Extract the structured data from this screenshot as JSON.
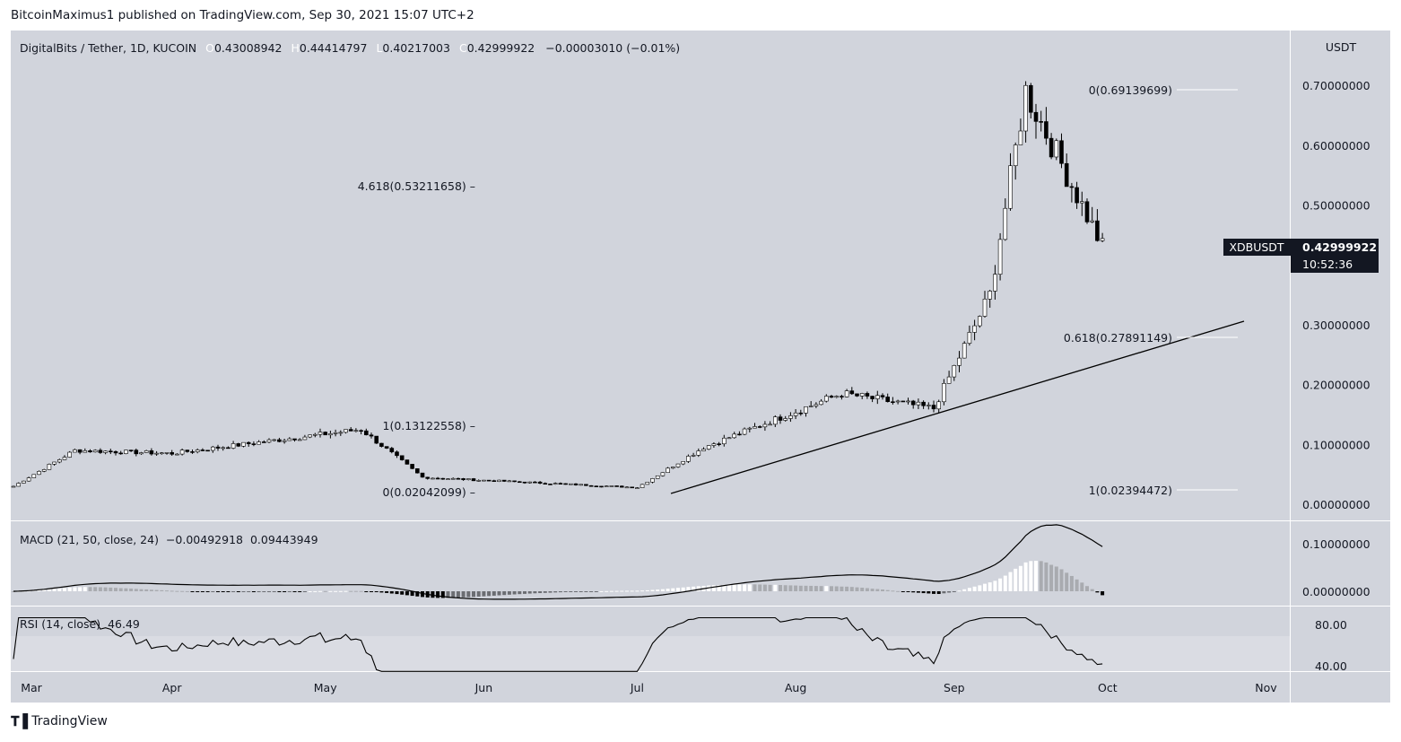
{
  "header": {
    "published": "BitcoinMaximus1 published on TradingView.com, Sep 30, 2021 15:07 UTC+2"
  },
  "footer": {
    "brand": "TradingView"
  },
  "legend": {
    "symbol": "DigitalBits / Tether, 1D, KUCOIN",
    "o_key": "O",
    "o": "0.43008942",
    "h_key": "H",
    "h": "0.44414797",
    "l_key": "L",
    "l": "0.40217003",
    "c_key": "C",
    "c": "0.42999922",
    "change": "−0.00003010 (−0.01%)"
  },
  "price_axis": {
    "currency": "USDT",
    "ticks": [
      "0.70000000",
      "0.60000000",
      "0.50000000",
      "0.30000000",
      "0.20000000",
      "0.10000000",
      "0.00000000"
    ]
  },
  "last_price": {
    "ticker": "XDBUSDT",
    "price": "0.42999922",
    "countdown": "10:52:36"
  },
  "fib_labels": {
    "top_zero": "0(0.69139699)",
    "ext_4618": "4.618(0.53211658) –",
    "one_low": "1(0.13122558) –",
    "zero_low": "0(0.02042099) –",
    "r618": "0.618(0.27891149)",
    "one_bottom": "1(0.02394472)"
  },
  "macd": {
    "label": "MACD (21, 50, close, 24)",
    "v1": "−0.00492918",
    "v2": "0.09443949",
    "ticks": [
      "0.10000000",
      "0.00000000"
    ]
  },
  "rsi": {
    "label": "RSI (14, close)",
    "value": "46.49",
    "ticks": [
      "80.00",
      "40.00"
    ]
  },
  "time_axis": [
    "Mar",
    "Apr",
    "May",
    "Jun",
    "Jul",
    "Aug",
    "Sep",
    "Oct",
    "Nov"
  ],
  "colors": {
    "background": "#d1d4dc",
    "bull": "#ffffff",
    "bear": "#000000",
    "fib": "#ffffff",
    "line": "#000000",
    "price_tag": "#131722"
  },
  "chart_data": {
    "type": "candlestick",
    "title": "DigitalBits / Tether, 1D, KUCOIN",
    "ylabel": "USDT",
    "ylim": [
      0.0,
      0.72
    ],
    "key_points": [
      {
        "date": "Mar 1",
        "close": 0.03
      },
      {
        "date": "Mar 13",
        "close": 0.09
      },
      {
        "date": "Apr 1",
        "close": 0.085
      },
      {
        "date": "May 8",
        "close": 0.125
      },
      {
        "date": "May 20",
        "close": 0.045
      },
      {
        "date": "Jun 1",
        "close": 0.04
      },
      {
        "date": "Jul 1",
        "close": 0.028
      },
      {
        "date": "Jul 14",
        "close": 0.095
      },
      {
        "date": "Aug 10",
        "close": 0.185
      },
      {
        "date": "Aug 28",
        "close": 0.16
      },
      {
        "date": "Sep 8",
        "close": 0.35
      },
      {
        "date": "Sep 15",
        "close": 0.69
      },
      {
        "date": "Sep 30",
        "close": 0.43
      }
    ],
    "macd": {
      "label": "MACD (21, 50, close, 24)",
      "values": [
        -0.00492918,
        0.09443949
      ]
    },
    "rsi": {
      "label": "RSI (14, close)",
      "value": 46.49
    }
  }
}
